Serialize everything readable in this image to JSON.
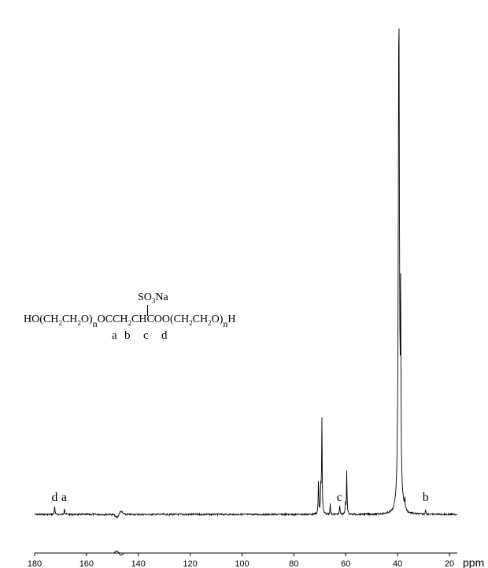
{
  "chart_data": {
    "type": "line",
    "title": "",
    "xlabel": "ppm",
    "ylabel": "",
    "xlim": [
      180,
      20
    ],
    "x_ticks": [
      "180",
      "160",
      "140",
      "120",
      "100",
      "80",
      "60",
      "40",
      "20"
    ],
    "grid": false,
    "legend": "none",
    "peaks": [
      {
        "ppm": 172.3,
        "height": 0.018,
        "label": "d"
      },
      {
        "ppm": 168.5,
        "height": 0.014,
        "label": "a"
      },
      {
        "ppm": 70.5,
        "height": 0.075,
        "label": ""
      },
      {
        "ppm": 69.6,
        "height": 0.057,
        "label": ""
      },
      {
        "ppm": 69.2,
        "height": 0.19,
        "label": ""
      },
      {
        "ppm": 66.0,
        "height": 0.02,
        "label": ""
      },
      {
        "ppm": 62.3,
        "height": 0.018,
        "label": "c"
      },
      {
        "ppm": 60.1,
        "height": 0.022,
        "label": ""
      },
      {
        "ppm": 59.6,
        "height": 0.087,
        "label": ""
      },
      {
        "ppm": 39.5,
        "height": 1.0,
        "label": ""
      },
      {
        "ppm": 38.8,
        "height": 0.35,
        "label": ""
      },
      {
        "ppm": 37.2,
        "height": 0.02,
        "label": ""
      },
      {
        "ppm": 29.2,
        "height": 0.012,
        "label": "b"
      }
    ]
  },
  "formula": {
    "top": "SO",
    "top_sub": "3",
    "top_tail": "Na",
    "line_html_parts": [
      "HO",
      "(CH",
      "2",
      "CH",
      "2",
      "O)",
      "n",
      "OCCH",
      "2",
      "CHCOO",
      "(CH",
      "2",
      "CH",
      "2",
      "O)",
      "n",
      "H"
    ],
    "letters": [
      "a",
      "b",
      "c",
      "d"
    ]
  },
  "colors": {
    "line": "#000000",
    "background": "#ffffff"
  }
}
